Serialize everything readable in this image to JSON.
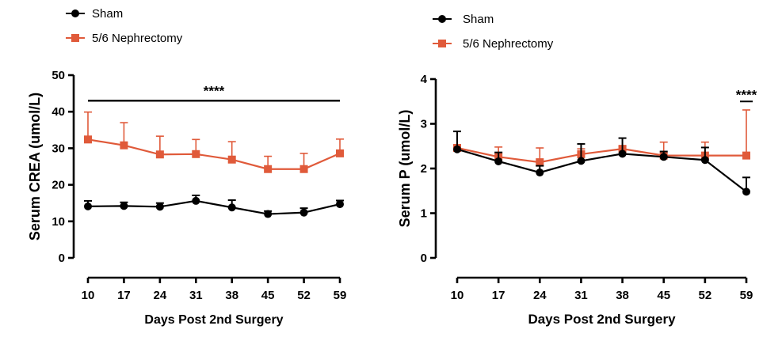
{
  "colors": {
    "sham": "#000000",
    "nephrectomy": "#E05A3A"
  },
  "chart_data": [
    {
      "type": "line",
      "ylabel": "Serum CREA (umol/L)",
      "xlabel": "Days Post 2nd Surgery",
      "x": [
        10,
        17,
        24,
        31,
        38,
        45,
        52,
        59
      ],
      "ylim": [
        0,
        50
      ],
      "yticks": [
        0,
        10,
        20,
        30,
        40,
        50
      ],
      "legend_position": "top-left",
      "series": [
        {
          "name": "Sham",
          "marker": "circle",
          "values": [
            14.1,
            14.2,
            14.0,
            15.6,
            13.8,
            12.0,
            12.4,
            14.7
          ],
          "err_up": [
            1.5,
            1.0,
            1.0,
            1.5,
            2.0,
            0.8,
            1.2,
            1.0
          ]
        },
        {
          "name": "5/6 Nephrectomy",
          "marker": "square",
          "values": [
            32.4,
            30.8,
            28.3,
            28.4,
            26.9,
            24.3,
            24.3,
            28.6
          ],
          "err_up": [
            7.5,
            6.2,
            5.0,
            4.0,
            4.9,
            3.5,
            4.3,
            3.9
          ]
        }
      ],
      "significance": {
        "label": "****",
        "from_x": 10,
        "to_x": 59,
        "y": 43
      }
    },
    {
      "type": "line",
      "ylabel": "Serum P (umol/L)",
      "xlabel": "Days Post 2nd Surgery",
      "x": [
        10,
        17,
        24,
        31,
        38,
        45,
        52,
        59
      ],
      "ylim": [
        0,
        4
      ],
      "yticks": [
        0,
        1,
        2,
        3,
        4
      ],
      "legend_position": "top-left",
      "series": [
        {
          "name": "Sham",
          "marker": "circle",
          "values": [
            2.43,
            2.16,
            1.91,
            2.17,
            2.33,
            2.26,
            2.19,
            1.48
          ],
          "err_up": [
            0.4,
            0.2,
            0.15,
            0.38,
            0.35,
            0.12,
            0.28,
            0.32
          ]
        },
        {
          "name": "5/6 Nephrectomy",
          "marker": "square",
          "values": [
            2.46,
            2.26,
            2.14,
            2.32,
            2.44,
            2.29,
            2.29,
            2.29
          ],
          "err_up": [
            0.05,
            0.22,
            0.32,
            0.12,
            0.05,
            0.3,
            0.3,
            1.02
          ]
        }
      ],
      "significance": {
        "label": "****",
        "from_x": 59,
        "to_x": 59,
        "y": 3.5
      }
    }
  ]
}
